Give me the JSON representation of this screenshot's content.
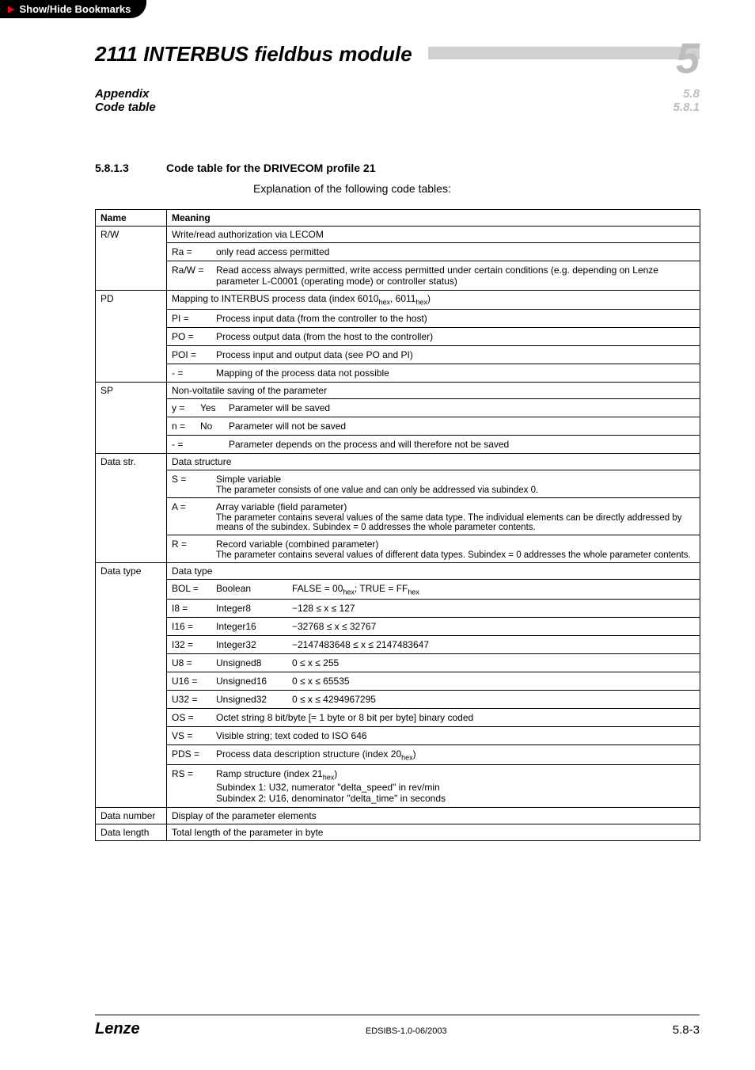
{
  "bookmark_label": "Show/Hide Bookmarks",
  "header": {
    "main_title": "2111 INTERBUS fieldbus module",
    "chapter_num": "5",
    "appendix": "Appendix",
    "code_table": "Code table",
    "sec_right_1": "5.8",
    "sec_right_2": "5.8.1"
  },
  "section": {
    "number": "5.8.1.3",
    "title": "Code table for the DRIVECOM profile 21",
    "explanation": "Explanation of the following code tables:"
  },
  "table": {
    "head_name": "Name",
    "head_meaning": "Meaning",
    "rows": [
      {
        "name": "R/W",
        "header": "Write/read authorization via LECOM",
        "items": [
          {
            "k": "Ra =",
            "v": "only read access permitted"
          },
          {
            "k": "Ra/W =",
            "v": "Read access always permitted, write access permitted under certain conditions (e.g. depending on Lenze parameter L-C0001 (operating mode) or controller status)"
          }
        ]
      },
      {
        "name": "PD",
        "header_html": "Mapping to INTERBUS process data (index 6010<sub class='hex'>hex</sub>, 6011<sub class='hex'>hex</sub>)",
        "items": [
          {
            "k": "PI =",
            "v": "Process input data (from the controller to the host)"
          },
          {
            "k": "PO =",
            "v": "Process output data (from the host to the controller)"
          },
          {
            "k": "POI =",
            "v": "Process input and output data (see PO and PI)"
          },
          {
            "k": "- =",
            "v": "Mapping of the process data not possible"
          }
        ]
      },
      {
        "name": "SP",
        "header": "Non-voltatile saving of the parameter",
        "items3": [
          {
            "k": "y =",
            "m": "Yes",
            "v": "Parameter will be saved"
          },
          {
            "k": "n =",
            "m": "No",
            "v": "Parameter will not be saved"
          },
          {
            "k": "- =",
            "m": "",
            "v": "Parameter depends on the process and will therefore not be saved"
          }
        ]
      },
      {
        "name": "Data str.",
        "header": "Data structure",
        "items_multi": [
          {
            "k": "S =",
            "v": "Simple variable",
            "note": "The parameter consists of one value and can only be addressed via subindex 0."
          },
          {
            "k": "A =",
            "v": "Array variable (field parameter)",
            "note": "The parameter contains several values of the same data type. The individual elements can be directly addressed by means of the subindex. Subindex = 0 addresses the whole parameter contents."
          },
          {
            "k": "R =",
            "v": "Record variable (combined parameter)",
            "note": "The parameter contains several values of different data types. Subindex = 0 addresses the whole parameter contents."
          }
        ]
      },
      {
        "name": "Data type",
        "header": "Data type",
        "items2": [
          {
            "k": "BOL =",
            "m": "Boolean",
            "v_html": "FALSE = 00<sub class='hex'>hex</sub>; TRUE = FF<sub class='hex'>hex</sub>"
          },
          {
            "k": "I8 =",
            "m": "Integer8",
            "v": "−128 ≤ x ≤ 127"
          },
          {
            "k": "I16 =",
            "m": "Integer16",
            "v": "−32768 ≤ x ≤ 32767"
          },
          {
            "k": "I32 =",
            "m": "Integer32",
            "v": "−2147483648 ≤ x ≤ 2147483647"
          },
          {
            "k": "U8 =",
            "m": "Unsigned8",
            "v": "0 ≤ x ≤ 255"
          },
          {
            "k": "U16 =",
            "m": "Unsigned16",
            "v": "0 ≤ x ≤ 65535"
          },
          {
            "k": "U32 =",
            "m": "Unsigned32",
            "v": "0 ≤ x ≤ 4294967295"
          },
          {
            "k": "OS =",
            "m": "",
            "v": "Octet string 8 bit/byte [= 1 byte or 8 bit per byte] binary coded"
          },
          {
            "k": "VS =",
            "m": "",
            "v": "Visible string; text coded to ISO 646"
          },
          {
            "k": "PDS =",
            "m": "",
            "v_html": "Process data description structure (index 20<sub class='hex'>hex</sub>)"
          },
          {
            "k": "RS =",
            "m": "",
            "v_html": "Ramp structure (index 21<sub class='hex'>hex</sub>)<br>Subindex 1: U32, numerator \"delta_speed\" in rev/min<br>Subindex 2: U16, denominator \"delta_time\" in seconds"
          }
        ]
      },
      {
        "name": "Data number",
        "plain": "Display of the parameter elements"
      },
      {
        "name": "Data length",
        "plain": "Total length of the parameter in byte"
      }
    ]
  },
  "footer": {
    "brand": "Lenze",
    "doc": "EDSIBS-1.0-06/2003",
    "page": "5.8-3"
  }
}
